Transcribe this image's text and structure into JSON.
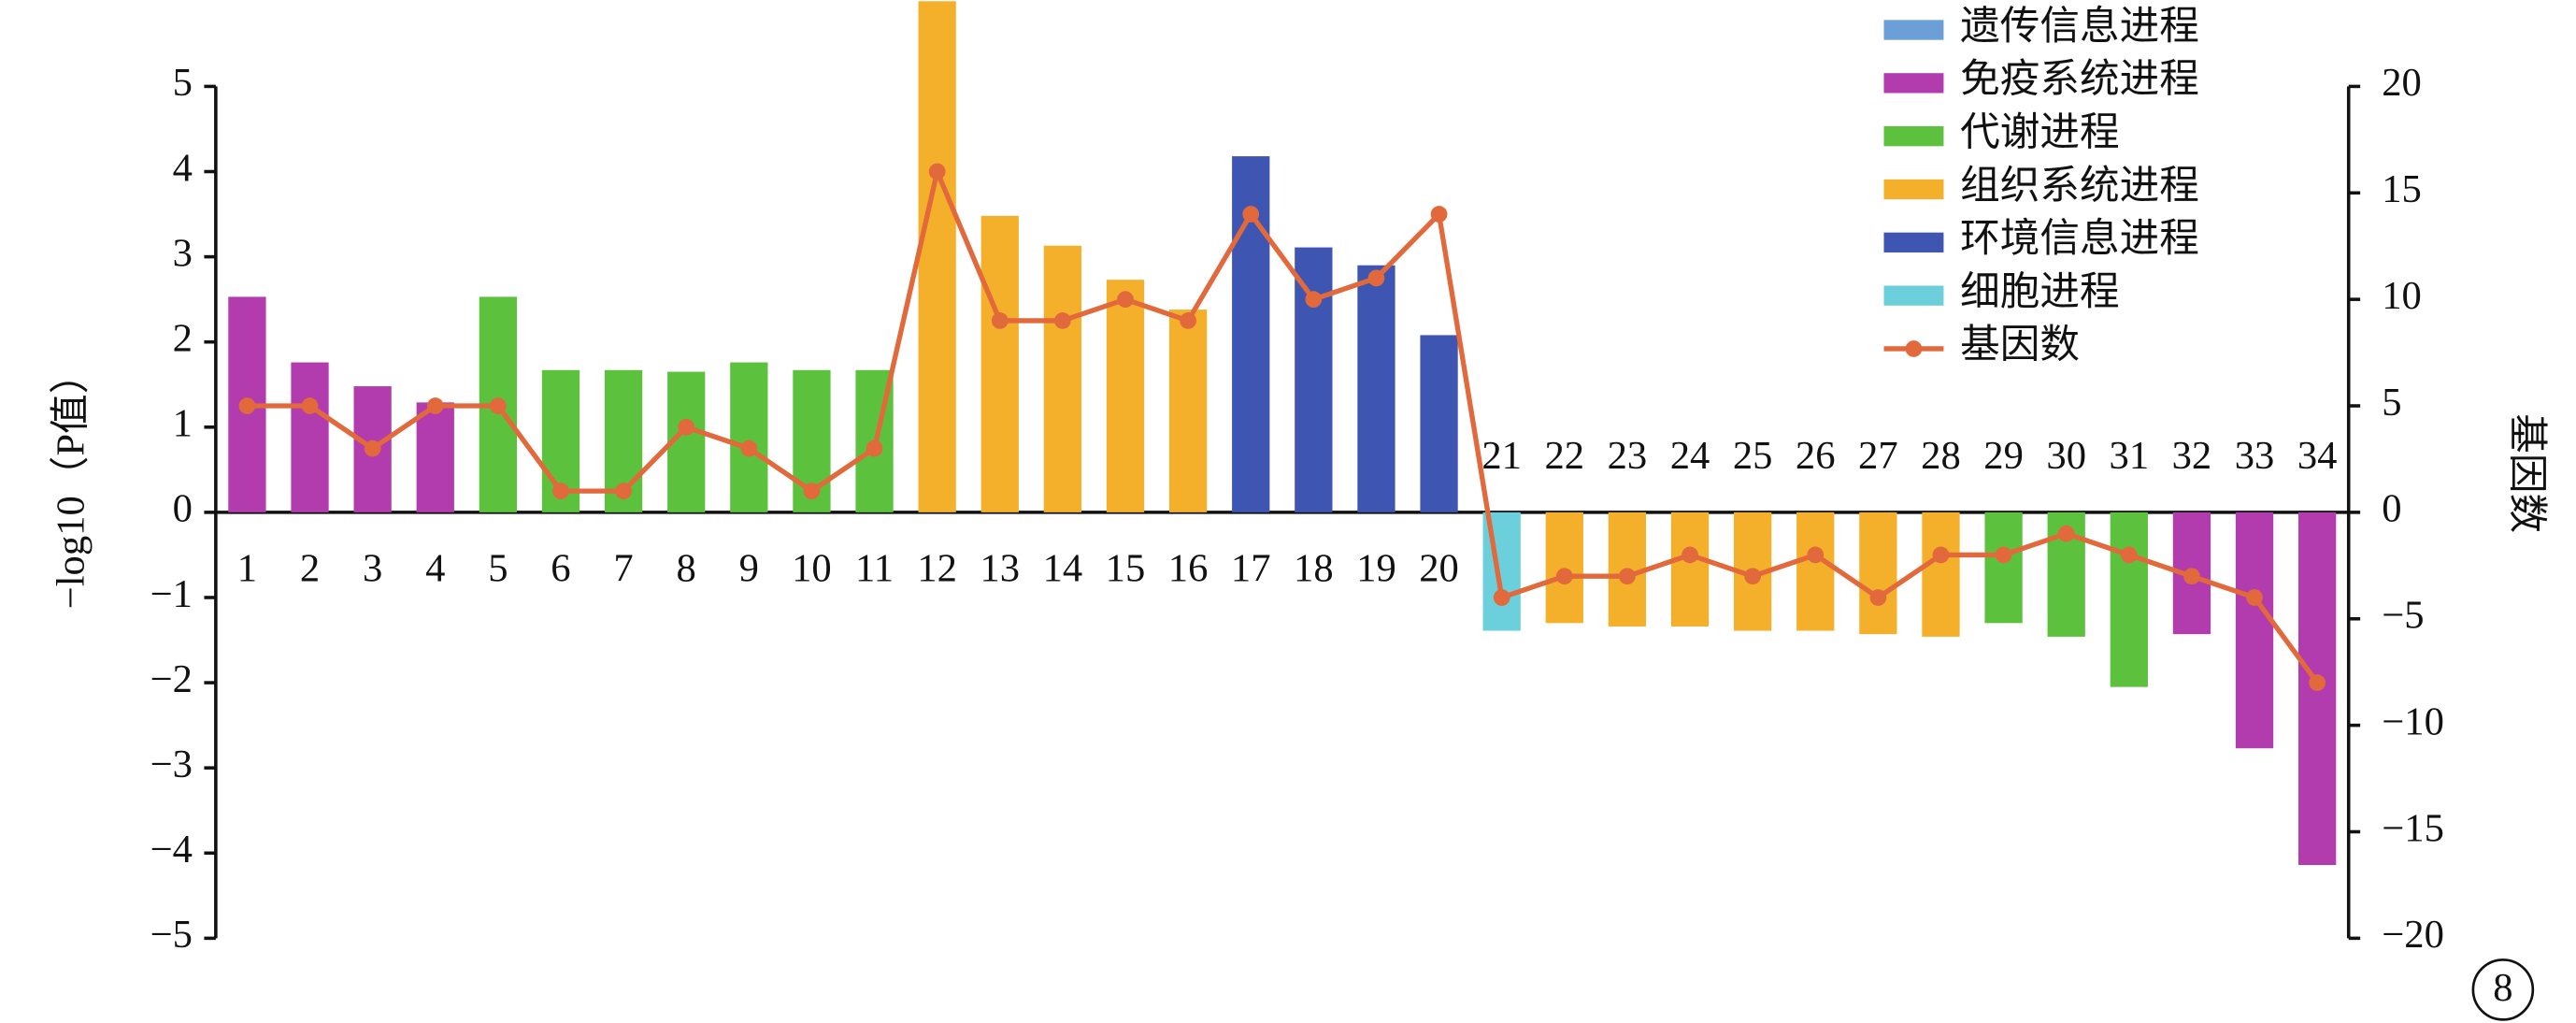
{
  "chart_data": {
    "type": "bar",
    "y_label": "−log10（P值）",
    "y2_label": "基因数",
    "categories": [
      "1",
      "2",
      "3",
      "4",
      "5",
      "6",
      "7",
      "8",
      "9",
      "10",
      "11",
      "12",
      "13",
      "14",
      "15",
      "16",
      "17",
      "18",
      "19",
      "20",
      "21",
      "22",
      "23",
      "24",
      "25",
      "26",
      "27",
      "28",
      "29",
      "30",
      "31",
      "32",
      "33",
      "34"
    ],
    "series": [
      {
        "name": "遗传信息进程",
        "color": "#6a9fd8",
        "values": [
          null,
          null,
          null,
          null,
          null,
          null,
          null,
          null,
          null,
          null,
          null,
          null,
          null,
          null,
          null,
          null,
          null,
          null,
          null,
          null,
          null,
          null,
          null,
          null,
          null,
          null,
          null,
          null,
          null,
          null,
          null,
          null,
          null,
          null
        ]
      },
      {
        "name": "免疫系统进程",
        "color": "#b23bae",
        "values": [
          2.53,
          1.76,
          1.48,
          1.29,
          null,
          null,
          null,
          null,
          null,
          null,
          null,
          null,
          null,
          null,
          null,
          null,
          null,
          null,
          null,
          null,
          null,
          null,
          null,
          null,
          null,
          null,
          null,
          null,
          null,
          null,
          null,
          -1.43,
          -2.77,
          -4.14
        ]
      },
      {
        "name": "代谢进程",
        "color": "#5cc23e",
        "values": [
          null,
          null,
          null,
          null,
          2.53,
          1.67,
          1.67,
          1.65,
          1.76,
          1.67,
          1.67,
          null,
          null,
          null,
          null,
          null,
          null,
          null,
          null,
          null,
          null,
          null,
          null,
          null,
          null,
          null,
          null,
          null,
          -1.3,
          -1.46,
          -2.05,
          null,
          null,
          null
        ]
      },
      {
        "name": "组织系统进程",
        "color": "#f4b02a",
        "values": [
          null,
          null,
          null,
          null,
          null,
          null,
          null,
          null,
          null,
          null,
          null,
          6.0,
          3.48,
          3.13,
          2.73,
          2.38,
          null,
          null,
          null,
          null,
          null,
          -1.3,
          -1.34,
          -1.34,
          -1.39,
          -1.39,
          -1.43,
          -1.46,
          null,
          null,
          null,
          null,
          null,
          null
        ]
      },
      {
        "name": "环境信息进程",
        "color": "#3e55b1",
        "values": [
          null,
          null,
          null,
          null,
          null,
          null,
          null,
          null,
          null,
          null,
          null,
          null,
          null,
          null,
          null,
          null,
          4.18,
          3.11,
          2.9,
          2.08,
          null,
          null,
          null,
          null,
          null,
          null,
          null,
          null,
          null,
          null,
          null,
          null,
          null,
          null
        ]
      },
      {
        "name": "细胞进程",
        "color": "#6bd0dc",
        "values": [
          null,
          null,
          null,
          null,
          null,
          null,
          null,
          null,
          null,
          null,
          null,
          null,
          null,
          null,
          null,
          null,
          null,
          null,
          null,
          null,
          -1.39,
          null,
          null,
          null,
          null,
          null,
          null,
          null,
          null,
          null,
          null,
          null,
          null,
          null
        ]
      },
      {
        "name": "基因数",
        "type": "line",
        "axis": "y2",
        "color": "#e2693b",
        "values": [
          5,
          5,
          3,
          5,
          5,
          1,
          1,
          4,
          3,
          1,
          3,
          16,
          9,
          9,
          10,
          9,
          14,
          10,
          11,
          14,
          -4,
          -3,
          -3,
          -2,
          -3,
          -2,
          -4,
          -2,
          -2,
          -1,
          -2,
          -3,
          -4,
          -8
        ]
      }
    ],
    "ylim": [
      -5,
      5
    ],
    "yticks": [
      {
        "value": -5,
        "label": "−5"
      },
      {
        "value": -4,
        "label": "−4"
      },
      {
        "value": -3,
        "label": "−3"
      },
      {
        "value": -2,
        "label": "−2"
      },
      {
        "value": -1,
        "label": "−1"
      },
      0,
      1,
      2,
      3,
      4,
      5
    ],
    "y2lim": [
      -20,
      20
    ],
    "y2ticks": [
      {
        "value": -20,
        "label": "−20"
      },
      {
        "value": -15,
        "label": "−15"
      },
      {
        "value": -10,
        "label": "−10"
      },
      {
        "value": -5,
        "label": "−5"
      },
      0,
      5,
      10,
      15,
      20
    ],
    "annotation": "8"
  }
}
